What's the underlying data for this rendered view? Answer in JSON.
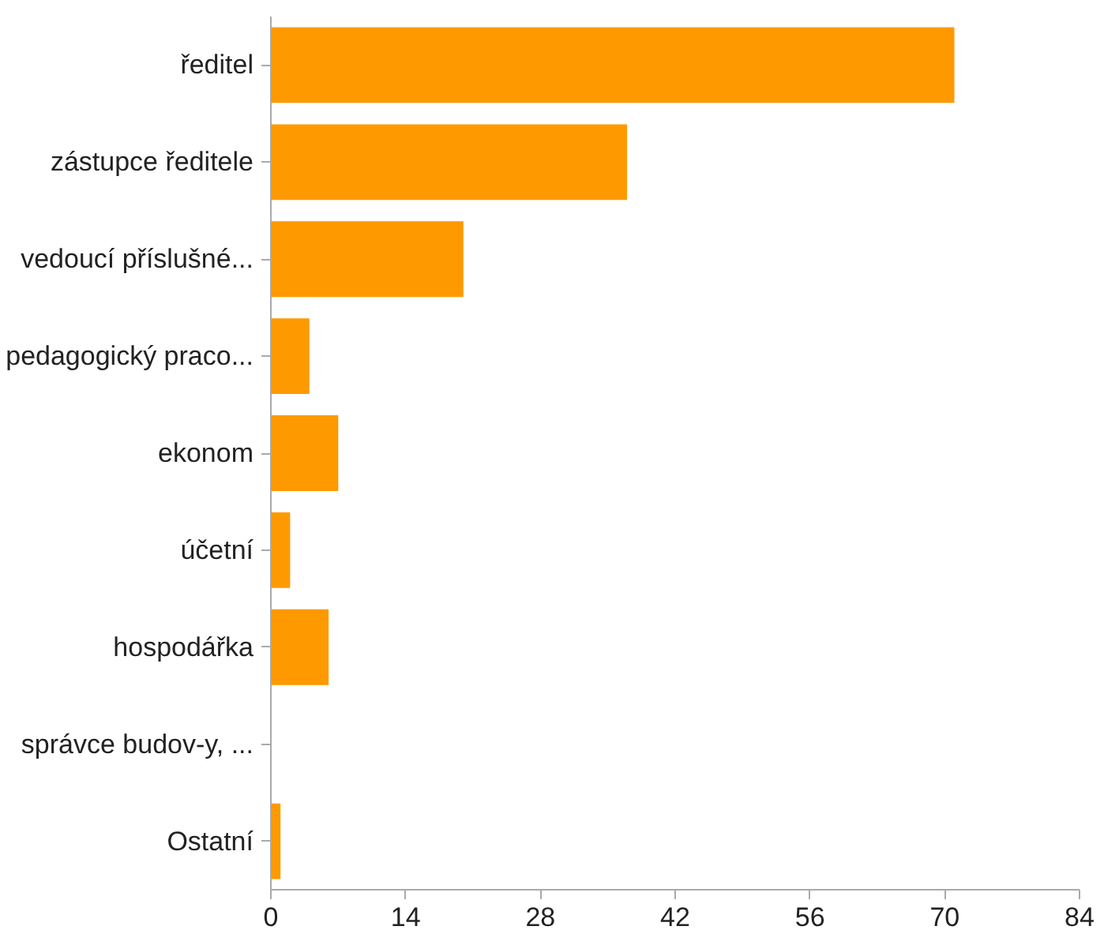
{
  "chart_data": {
    "type": "bar",
    "orientation": "horizontal",
    "categories": [
      "ředitel",
      "zástupce ředitele",
      "vedoucí příslušné...",
      "pedagogický praco...",
      "ekonom",
      "účetní",
      "hospodářka",
      "správce budov-y, ...",
      "Ostatní"
    ],
    "values": [
      71,
      37,
      20,
      4,
      7,
      2,
      6,
      0,
      1
    ],
    "color": "#ff9900",
    "xlim": [
      0,
      84
    ],
    "xticks": [
      0,
      14,
      28,
      42,
      56,
      70,
      84
    ],
    "grid": false
  }
}
